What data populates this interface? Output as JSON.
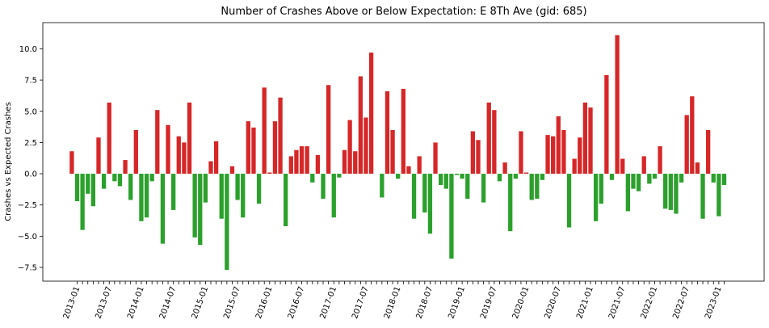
{
  "chart_data": {
    "type": "bar",
    "title": "Number of Crashes Above or Below Expectation: E 8Th Ave (gid: 685)",
    "xlabel": "",
    "ylabel": "Crashes vs Expected Crashes",
    "ylim": [
      -8.6,
      12.1
    ],
    "y_ticks": [
      -7.5,
      -5.0,
      -2.5,
      0.0,
      2.5,
      5.0,
      7.5,
      10.0
    ],
    "y_tick_labels": [
      "−7.5",
      "−5.0",
      "−2.5",
      "0.0",
      "2.5",
      "5.0",
      "7.5",
      "10.0"
    ],
    "x_ticks": [
      0,
      6,
      12,
      18,
      24,
      30,
      36,
      42,
      48,
      54,
      60,
      66,
      72,
      78,
      84,
      90,
      96,
      102,
      108,
      114,
      120
    ],
    "x_tick_labels": [
      "2013-01",
      "2013-07",
      "2014-01",
      "2014-07",
      "2015-01",
      "2015-07",
      "2016-01",
      "2016-07",
      "2017-01",
      "2017-07",
      "2018-01",
      "2018-07",
      "2019-01",
      "2019-07",
      "2020-01",
      "2020-07",
      "2021-01",
      "2021-07",
      "2022-01",
      "2022-07",
      "2023-01"
    ],
    "first_month": "2012-12",
    "last_month": "2023-02",
    "colors": {
      "positive": "#d62728",
      "negative": "#2ca02c"
    },
    "grid": false,
    "values": [
      1.8,
      -2.2,
      -4.5,
      -1.6,
      -2.6,
      2.9,
      -1.2,
      5.7,
      -0.6,
      -1.0,
      1.1,
      -2.1,
      3.5,
      -3.8,
      -3.5,
      -0.6,
      5.1,
      -5.6,
      3.9,
      -2.9,
      3.0,
      2.5,
      5.7,
      -5.1,
      -5.7,
      -2.3,
      1.0,
      2.6,
      -3.6,
      -7.7,
      0.6,
      -2.1,
      -3.5,
      4.2,
      3.7,
      -2.4,
      6.9,
      0.1,
      4.2,
      6.1,
      -4.2,
      1.4,
      1.9,
      2.2,
      2.2,
      -0.7,
      1.5,
      -2.0,
      7.1,
      -3.5,
      -0.3,
      1.9,
      4.3,
      1.8,
      7.8,
      4.5,
      9.7,
      0.0,
      -1.9,
      6.6,
      3.5,
      -0.4,
      6.8,
      0.6,
      -3.6,
      1.4,
      -3.1,
      -4.8,
      2.5,
      -0.9,
      -1.2,
      -6.8,
      -0.1,
      -0.4,
      -2.0,
      3.4,
      2.7,
      -2.3,
      5.7,
      5.1,
      -0.6,
      0.9,
      -4.6,
      -0.4,
      3.4,
      0.1,
      -2.1,
      -2.0,
      -0.5,
      3.1,
      3.0,
      4.6,
      3.5,
      -4.3,
      1.2,
      2.9,
      5.7,
      5.3,
      -3.8,
      -2.4,
      7.9,
      -0.5,
      11.1,
      1.2,
      -3.0,
      -1.2,
      -1.4,
      1.4,
      -0.8,
      -0.4,
      2.2,
      -2.8,
      -2.9,
      -3.2,
      -0.7,
      4.7,
      6.2,
      0.9,
      -3.6,
      3.5,
      -0.7,
      -3.4,
      -0.9
    ]
  }
}
